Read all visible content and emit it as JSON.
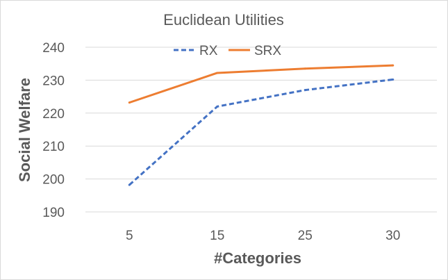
{
  "chart_data": {
    "type": "line",
    "title": "Euclidean Utilities",
    "xlabel": "#Categories",
    "ylabel": "Social Welfare",
    "categories": [
      "5",
      "15",
      "25",
      "30"
    ],
    "ylim": [
      190,
      240
    ],
    "yticks": [
      "190",
      "200",
      "210",
      "220",
      "230",
      "240"
    ],
    "grid": true,
    "legend_position": "top",
    "series": [
      {
        "name": "RX",
        "values": [
          198.2,
          222,
          227,
          230.2
        ],
        "color": "#4472c4",
        "style": "dashed"
      },
      {
        "name": "SRX",
        "values": [
          223.2,
          232.2,
          233.5,
          234.5
        ],
        "color": "#ed7d31",
        "style": "solid"
      }
    ]
  }
}
